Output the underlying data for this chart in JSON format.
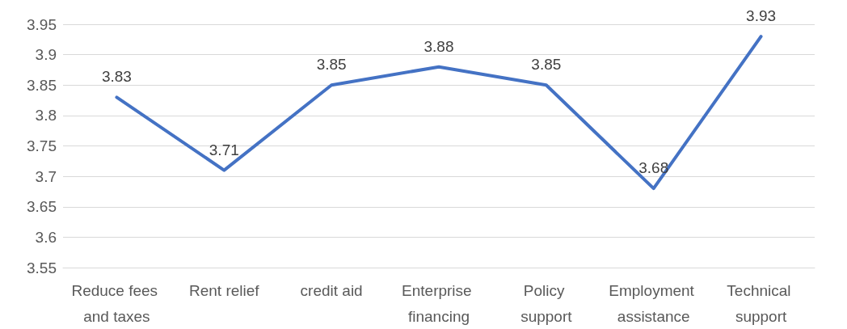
{
  "chart_data": {
    "type": "line",
    "categories": [
      "Reduce fees and taxes",
      "Rent relief",
      "credit aid",
      "Enterprise financing",
      "Policy support",
      "Employment assistance",
      "Technical support"
    ],
    "series": [
      {
        "color": "#4472c4",
        "values": [
          3.83,
          3.71,
          3.85,
          3.88,
          3.85,
          3.68,
          3.93
        ]
      }
    ],
    "ylim": [
      3.55,
      3.95
    ],
    "yticks": [
      3.55,
      3.6,
      3.65,
      3.7,
      3.75,
      3.8,
      3.85,
      3.9,
      3.95
    ],
    "grid": "y",
    "data_labels": true,
    "marker": "none",
    "line_style": "solid"
  }
}
